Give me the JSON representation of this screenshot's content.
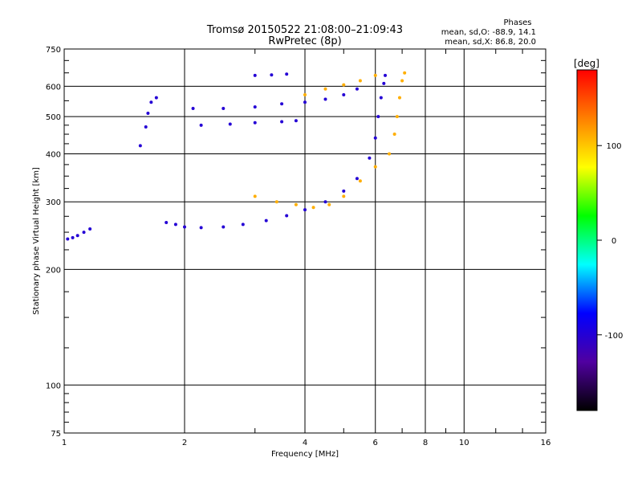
{
  "chart_data": {
    "type": "scatter",
    "title": "Tromsø 20150522 21:08:00–21:09:43",
    "subtitle": "RwPretec (8p)",
    "stats": {
      "heading": "Phases",
      "line_o": "mean, sd,O: -88.9, 14.1",
      "line_x": "mean, sd,X: 86.8, 20.0"
    },
    "xlabel": "Frequency [MHz]",
    "ylabel": "Stationary phase Virtual Height [km]",
    "x_scale": "log",
    "y_scale": "log",
    "xlim": [
      1,
      16
    ],
    "ylim": [
      75,
      750
    ],
    "x_ticks": [
      1,
      2,
      4,
      6,
      8,
      10,
      16
    ],
    "x_tick_labels": [
      "1",
      "2",
      "4",
      "6",
      "8",
      "10",
      "16"
    ],
    "y_ticks": [
      75,
      100,
      200,
      300,
      400,
      500,
      600,
      750
    ],
    "y_tick_labels": [
      "75",
      "100",
      "200",
      "300",
      "400",
      "500",
      "600",
      "750"
    ],
    "grid": true,
    "colorbar": {
      "label": "[deg]",
      "range": [
        -180,
        180
      ],
      "ticks": [
        100,
        0,
        -100
      ],
      "tick_labels": [
        "100",
        "0",
        "-100"
      ],
      "stops": [
        "#000000",
        "#5000a0",
        "#0000ff",
        "#00ffff",
        "#00ff00",
        "#ffff00",
        "#ff8000",
        "#ff0000"
      ]
    },
    "traces": [
      {
        "name": "",
        "phase": -100,
        "points": [
          [
            1.02,
            240
          ],
          [
            1.05,
            242
          ],
          [
            1.08,
            245
          ],
          [
            1.12,
            250
          ],
          [
            1.16,
            255
          ]
        ]
      },
      {
        "name": "",
        "phase": -100,
        "points": [
          [
            1.55,
            420
          ],
          [
            1.6,
            470
          ],
          [
            1.62,
            510
          ],
          [
            1.65,
            545
          ],
          [
            1.7,
            560
          ]
        ]
      },
      {
        "name": "",
        "phase": -100,
        "points": [
          [
            1.8,
            265
          ],
          [
            1.9,
            262
          ],
          [
            2.0,
            258
          ],
          [
            2.2,
            257
          ],
          [
            2.5,
            258
          ],
          [
            2.8,
            262
          ],
          [
            3.2,
            268
          ],
          [
            3.6,
            276
          ],
          [
            4.0,
            286
          ],
          [
            4.5,
            300
          ],
          [
            5.0,
            320
          ],
          [
            5.4,
            345
          ],
          [
            5.8,
            390
          ],
          [
            6.0,
            440
          ],
          [
            6.1,
            500
          ],
          [
            6.2,
            560
          ],
          [
            6.3,
            610
          ],
          [
            6.35,
            640
          ]
        ]
      },
      {
        "name": "",
        "phase": -100,
        "points": [
          [
            2.1,
            525
          ],
          [
            2.5,
            525
          ],
          [
            3.0,
            530
          ],
          [
            3.5,
            540
          ],
          [
            4.0,
            545
          ],
          [
            4.5,
            555
          ],
          [
            5.0,
            570
          ],
          [
            5.4,
            590
          ]
        ]
      },
      {
        "name": "",
        "phase": -100,
        "points": [
          [
            2.2,
            475
          ],
          [
            2.6,
            478
          ],
          [
            3.0,
            482
          ],
          [
            3.5,
            485
          ],
          [
            3.8,
            488
          ]
        ]
      },
      {
        "name": "",
        "phase": -100,
        "points": [
          [
            3.0,
            640
          ],
          [
            3.3,
            642
          ],
          [
            3.6,
            645
          ]
        ]
      },
      {
        "name": "",
        "phase": 110,
        "points": [
          [
            3.0,
            310
          ],
          [
            3.4,
            300
          ],
          [
            3.8,
            295
          ],
          [
            4.2,
            290
          ],
          [
            4.6,
            295
          ],
          [
            5.0,
            310
          ],
          [
            5.5,
            340
          ],
          [
            6.0,
            370
          ],
          [
            6.5,
            400
          ],
          [
            6.7,
            450
          ],
          [
            6.8,
            500
          ],
          [
            6.9,
            560
          ],
          [
            7.0,
            620
          ],
          [
            7.1,
            650
          ]
        ]
      },
      {
        "name": "",
        "phase": 110,
        "points": [
          [
            4.0,
            570
          ],
          [
            4.5,
            590
          ],
          [
            5.0,
            605
          ],
          [
            5.5,
            620
          ],
          [
            6.0,
            640
          ]
        ]
      }
    ]
  }
}
